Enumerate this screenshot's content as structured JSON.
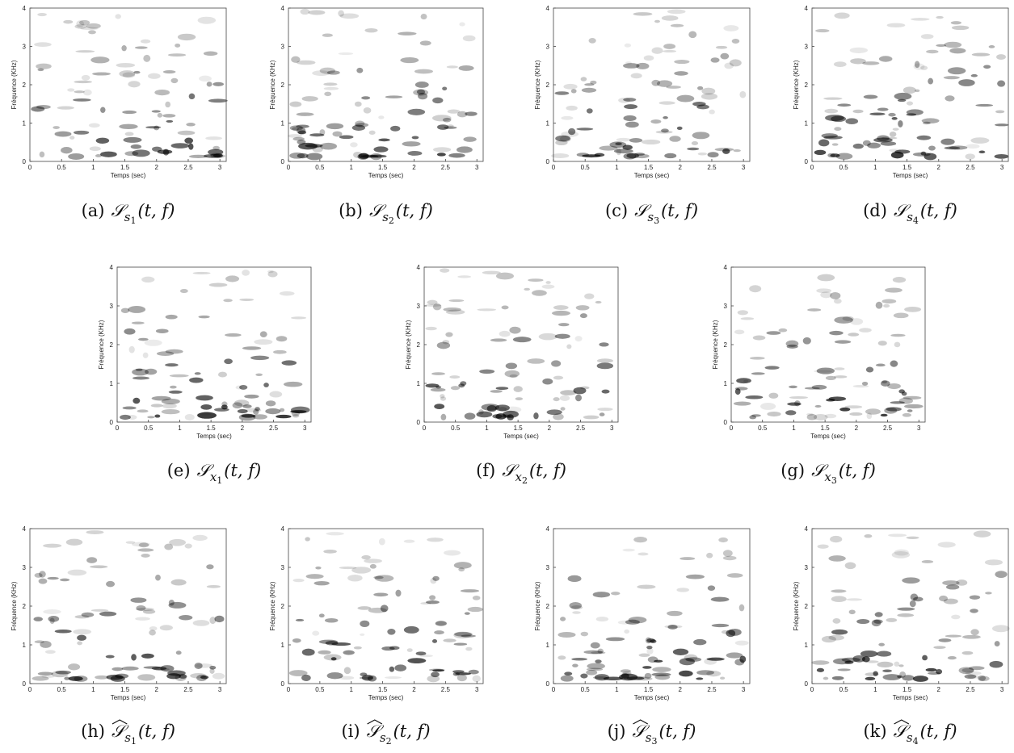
{
  "figure": {
    "axes": {
      "xlabel": "Temps (sec)",
      "ylabel": "Fréquence (KHz)",
      "xlim": [
        0,
        3.1
      ],
      "xticks": [
        0,
        0.5,
        1,
        1.5,
        2,
        2.5,
        3
      ],
      "ylim": [
        0,
        4
      ],
      "yticks": [
        0,
        1,
        2,
        3,
        4
      ]
    },
    "panels": [
      {
        "label": "(a)",
        "symbol": "𝒮",
        "subscript": "s",
        "index": "1",
        "args": "(t, f)",
        "hat": false
      },
      {
        "label": "(b)",
        "symbol": "𝒮",
        "subscript": "s",
        "index": "2",
        "args": "(t, f)",
        "hat": false
      },
      {
        "label": "(c)",
        "symbol": "𝒮",
        "subscript": "s",
        "index": "3",
        "args": "(t, f)",
        "hat": false
      },
      {
        "label": "(d)",
        "symbol": "𝒮",
        "subscript": "s",
        "index": "4",
        "args": "(t, f)",
        "hat": false
      },
      {
        "label": "(e)",
        "symbol": "𝒮",
        "subscript": "x",
        "index": "1",
        "args": "(t, f)",
        "hat": false
      },
      {
        "label": "(f)",
        "symbol": "𝒮",
        "subscript": "x",
        "index": "2",
        "args": "(t, f)",
        "hat": false
      },
      {
        "label": "(g)",
        "symbol": "𝒮",
        "subscript": "x",
        "index": "3",
        "args": "(t, f)",
        "hat": false
      },
      {
        "label": "(h)",
        "symbol": "𝒮",
        "subscript": "s",
        "index": "1",
        "args": "(t, f)",
        "hat": true
      },
      {
        "label": "(i)",
        "symbol": "𝒮",
        "subscript": "s",
        "index": "2",
        "args": "(t, f)",
        "hat": true
      },
      {
        "label": "(j)",
        "symbol": "𝒮",
        "subscript": "s",
        "index": "3",
        "args": "(t, f)",
        "hat": true
      },
      {
        "label": "(k)",
        "symbol": "𝒮",
        "subscript": "s",
        "index": "4",
        "args": "(t, f)",
        "hat": true
      }
    ]
  }
}
